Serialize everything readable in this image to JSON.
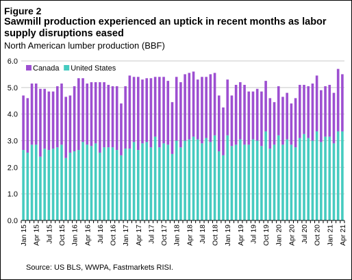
{
  "figure_label": "Figure 2",
  "title": "Sawmill production experienced an uptick in recent months as labor supply disruptions eased",
  "subtitle": "North American lumber production (BBF)",
  "source": "Source: US BLS, WWPA, Fastmarkets RISI.",
  "colors": {
    "canada": "#9d4fd1",
    "united_states": "#46cbc0",
    "grid": "#c8c8c8",
    "axis": "#000000"
  },
  "chart_data": {
    "type": "bar",
    "stacked": true,
    "ylim": [
      0,
      6
    ],
    "yticks": [
      "0.0",
      "1.0",
      "2.0",
      "3.0",
      "4.0",
      "5.0",
      "6.0"
    ],
    "grid": "horizontal",
    "legend_position": "top-left",
    "x": [
      "Jan 15",
      "Feb 15",
      "Mar 15",
      "Apr 15",
      "May 15",
      "Jun 15",
      "Jul 15",
      "Aug 15",
      "Sep 15",
      "Oct 15",
      "Nov 15",
      "Dec 15",
      "Jan 16",
      "Feb 16",
      "Mar 16",
      "Apr 16",
      "May 16",
      "Jun 16",
      "Jul 16",
      "Aug 16",
      "Sep 16",
      "Oct 16",
      "Nov 16",
      "Dec 16",
      "Jan 17",
      "Feb 17",
      "Mar 17",
      "Apr 17",
      "May 17",
      "Jun 17",
      "Jul 17",
      "Aug 17",
      "Sep 17",
      "Oct 17",
      "Nov 17",
      "Dec 17",
      "Jan 18",
      "Feb 18",
      "Mar 18",
      "Apr 18",
      "May 18",
      "Jun 18",
      "Jul 18",
      "Aug 18",
      "Sep 18",
      "Oct 18",
      "Nov 18",
      "Dec 18",
      "Jan 19",
      "Feb 19",
      "Mar 19",
      "Apr 19",
      "May 19",
      "Jun 19",
      "Jul 19",
      "Aug 19",
      "Sep 19",
      "Oct 19",
      "Nov 19",
      "Dec 19",
      "Jan 20",
      "Feb 20",
      "Mar 20",
      "Apr 20",
      "May 20",
      "Jun 20",
      "Jul 20",
      "Aug 20",
      "Sep 20",
      "Oct 20",
      "Nov 20",
      "Dec 20",
      "Jan 21",
      "Feb 21",
      "Mar 21",
      "Apr 21"
    ],
    "xtick_labels": [
      "Jan 15",
      "Apr 15",
      "Jul 15",
      "Oct 15",
      "Jan 16",
      "Apr 16",
      "Jul 16",
      "Oct 16",
      "Jan 17",
      "Apr 17",
      "Jul 17",
      "Oct 17",
      "Jan 18",
      "Apr 18",
      "Jul 18",
      "Oct 18",
      "Jan 19",
      "Apr 19",
      "Jul 19",
      "Oct 19",
      "Jan 20",
      "Apr 20",
      "Jul 20",
      "Oct 20",
      "Jan 21",
      "Apr 21"
    ],
    "series": [
      {
        "name": "United States",
        "values": [
          2.65,
          2.55,
          2.85,
          2.85,
          2.4,
          2.7,
          2.65,
          2.7,
          2.75,
          2.85,
          2.35,
          2.55,
          2.6,
          2.65,
          2.95,
          2.85,
          2.8,
          2.9,
          2.55,
          2.75,
          2.75,
          2.75,
          2.65,
          2.45,
          2.7,
          2.7,
          2.95,
          2.65,
          2.9,
          2.95,
          2.75,
          3.15,
          2.75,
          2.9,
          2.85,
          2.5,
          3.0,
          2.75,
          3.0,
          3.05,
          3.15,
          3.05,
          2.9,
          3.1,
          2.95,
          3.2,
          2.6,
          2.45,
          3.2,
          2.8,
          2.85,
          3.05,
          2.85,
          2.85,
          3.05,
          3.0,
          2.8,
          3.35,
          2.7,
          2.85,
          3.2,
          2.85,
          3.05,
          2.85,
          2.75,
          3.1,
          3.25,
          3.1,
          3.0,
          3.35,
          2.95,
          3.15,
          3.15,
          2.9,
          3.35,
          3.35
        ]
      },
      {
        "name": "Canada",
        "values": [
          2.05,
          2.05,
          2.3,
          2.3,
          2.55,
          2.25,
          2.2,
          2.15,
          2.3,
          2.3,
          2.3,
          2.15,
          2.45,
          2.7,
          2.4,
          2.3,
          2.4,
          2.3,
          2.65,
          2.45,
          2.35,
          2.3,
          2.4,
          1.95,
          2.35,
          2.75,
          2.45,
          2.75,
          2.4,
          2.4,
          2.6,
          2.25,
          2.65,
          2.5,
          2.4,
          1.95,
          2.4,
          2.45,
          2.5,
          2.5,
          2.45,
          2.25,
          2.5,
          2.3,
          2.55,
          2.35,
          2.1,
          1.8,
          2.1,
          1.9,
          2.25,
          2.15,
          2.25,
          2.0,
          1.8,
          1.95,
          2.05,
          1.9,
          1.9,
          1.6,
          1.85,
          1.8,
          1.75,
          1.55,
          1.85,
          2.0,
          1.85,
          1.95,
          2.15,
          2.1,
          1.95,
          1.9,
          1.95,
          1.9,
          2.35,
          2.15
        ]
      }
    ],
    "legend": [
      "Canada",
      "United States"
    ]
  }
}
